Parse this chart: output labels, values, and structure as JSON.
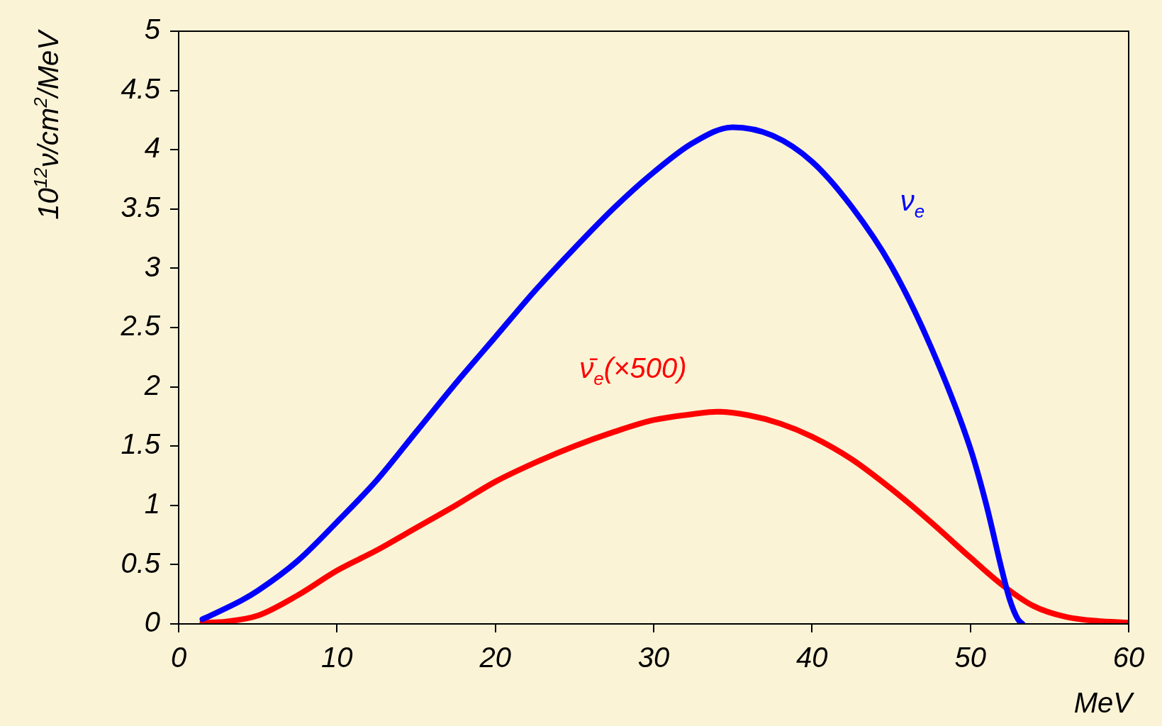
{
  "chart_data": {
    "type": "line",
    "xlabel": "MeV",
    "ylabel": "10$^{12}$ν/cm$^{2}$/MeV",
    "xlim": [
      0,
      60
    ],
    "xticks": [
      0,
      10,
      20,
      30,
      40,
      50,
      60
    ],
    "ylim": [
      0,
      5
    ],
    "yticks": [
      0,
      0.5,
      1,
      1.5,
      2,
      2.5,
      3,
      3.5,
      4,
      4.5,
      5
    ],
    "grid": false,
    "legend": false,
    "marker": "none",
    "line_style": "solid",
    "series": [
      {
        "name": "ν$_{e}$",
        "color": "#0000ff",
        "x": [
          1.5,
          2,
          4,
          5,
          7.5,
          10,
          12.5,
          15,
          17.5,
          20,
          22.5,
          25,
          27.5,
          30,
          32.5,
          35,
          37.5,
          40,
          42.5,
          45,
          47.5,
          50,
          51,
          52,
          52.5,
          53,
          53.3
        ],
        "values": [
          0.04,
          0.07,
          0.2,
          0.28,
          0.53,
          0.86,
          1.21,
          1.62,
          2.03,
          2.42,
          2.81,
          3.17,
          3.51,
          3.81,
          4.06,
          4.19,
          4.12,
          3.9,
          3.52,
          3.02,
          2.34,
          1.48,
          1.01,
          0.45,
          0.2,
          0.04,
          0
        ]
      },
      {
        "name": "ν̄$_{e}$(×500)",
        "color": "#ff0000",
        "x": [
          1.5,
          3,
          5,
          7.5,
          10,
          12.5,
          15,
          17.5,
          20,
          22.5,
          25,
          27.5,
          30,
          32.5,
          34,
          36,
          38,
          40,
          42.5,
          45,
          47.5,
          50,
          52,
          54,
          56,
          58,
          60
        ],
        "values": [
          0.01,
          0.02,
          0.07,
          0.24,
          0.45,
          0.62,
          0.81,
          1.0,
          1.2,
          1.36,
          1.5,
          1.62,
          1.72,
          1.77,
          1.79,
          1.76,
          1.69,
          1.58,
          1.39,
          1.14,
          0.86,
          0.56,
          0.33,
          0.15,
          0.06,
          0.025,
          0.01
        ]
      }
    ]
  }
}
